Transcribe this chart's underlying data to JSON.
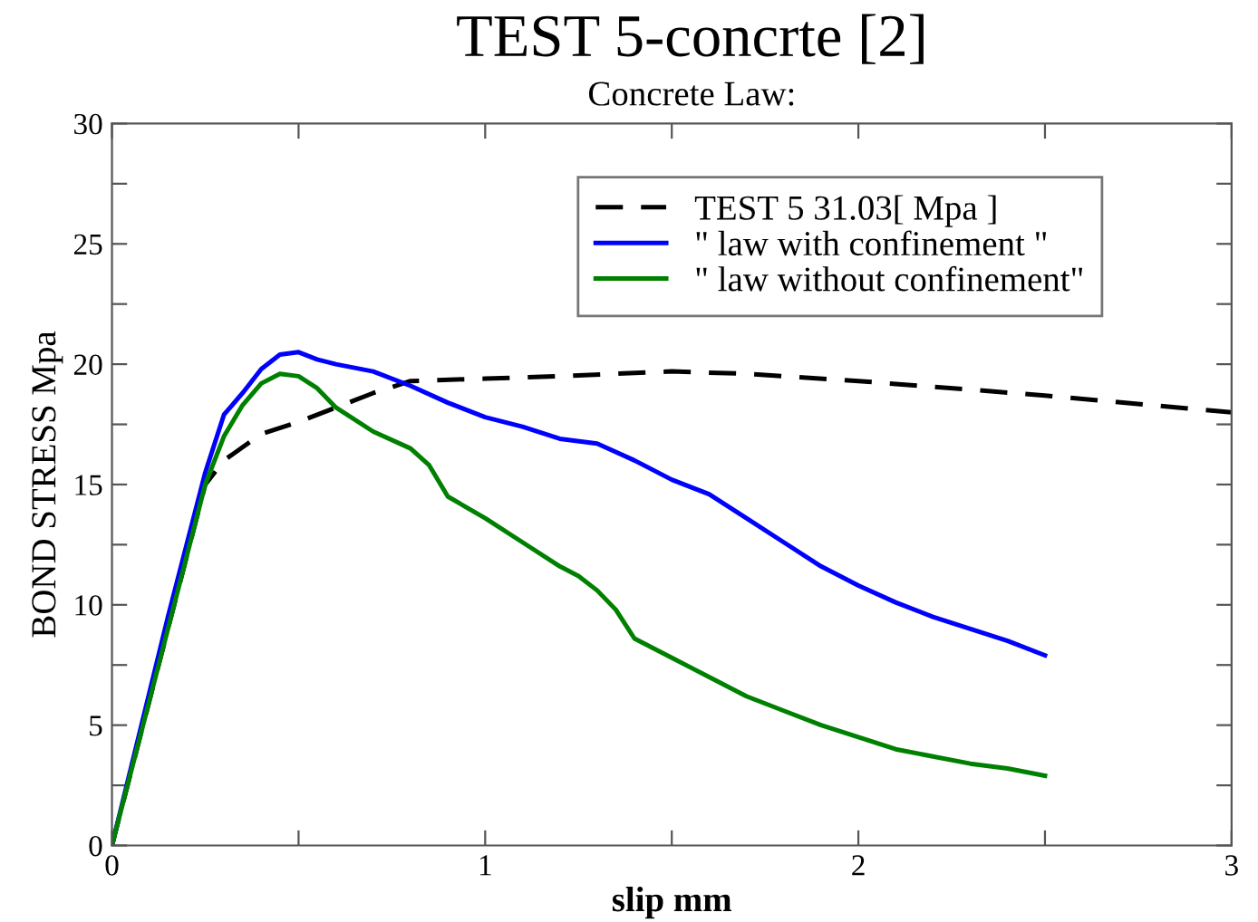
{
  "chart_data": {
    "type": "line",
    "title": "TEST 5-concrte [2]",
    "subtitle": "Concrete Law:",
    "xlabel": "slip mm",
    "ylabel": "BOND STRESS Mpa",
    "xlim": [
      0,
      3
    ],
    "ylim": [
      0,
      30
    ],
    "xticks": [
      0,
      {
        "value": 0.5,
        "label": null
      },
      1,
      {
        "value": 1.5,
        "label": null
      },
      2,
      {
        "value": 2.5,
        "label": null
      },
      3
    ],
    "yticks": [
      0,
      {
        "value": 2.5,
        "label": null
      },
      5,
      {
        "value": 7.5,
        "label": null
      },
      10,
      {
        "value": 12.5,
        "label": null
      },
      15,
      {
        "value": 17.5,
        "label": null
      },
      20,
      {
        "value": 22.5,
        "label": null
      },
      25,
      {
        "value": 27.5,
        "label": null
      },
      30
    ],
    "grid": false,
    "legend": "top right",
    "marker": "none",
    "series": [
      {
        "name": "TEST 5 31.03[ Mpa ]",
        "color": "#000000",
        "line_style": "dashed",
        "x": [
          0,
          0.1,
          0.2,
          0.25,
          0.3,
          0.4,
          0.5,
          0.6,
          0.7,
          0.8,
          1.0,
          1.2,
          1.5,
          1.7,
          2.0,
          2.5,
          3.0
        ],
        "values": [
          0,
          6,
          12,
          15,
          16,
          17.1,
          17.6,
          18.2,
          18.8,
          19.3,
          19.4,
          19.5,
          19.7,
          19.6,
          19.3,
          18.7,
          18.0
        ]
      },
      {
        "name": "\" law with confinement \"",
        "color": "#0000ff",
        "line_style": "solid",
        "x": [
          0,
          0.15,
          0.2,
          0.25,
          0.3,
          0.35,
          0.4,
          0.45,
          0.5,
          0.55,
          0.6,
          0.7,
          0.8,
          0.9,
          1.0,
          1.1,
          1.2,
          1.3,
          1.4,
          1.5,
          1.6,
          1.7,
          1.8,
          1.9,
          2.0,
          2.1,
          2.2,
          2.3,
          2.4,
          2.5
        ],
        "values": [
          0,
          9.5,
          12.5,
          15.5,
          17.9,
          18.8,
          19.8,
          20.4,
          20.5,
          20.2,
          20,
          19.7,
          19.1,
          18.4,
          17.8,
          17.4,
          16.9,
          16.7,
          16.0,
          15.2,
          14.6,
          13.6,
          12.6,
          11.6,
          10.8,
          10.1,
          9.5,
          9.0,
          8.5,
          7.9
        ]
      },
      {
        "name": "\" law without confinement\"",
        "color": "#008000",
        "line_style": "solid",
        "x": [
          0,
          0.1,
          0.2,
          0.25,
          0.3,
          0.35,
          0.4,
          0.45,
          0.5,
          0.55,
          0.6,
          0.7,
          0.8,
          0.85,
          0.9,
          1.0,
          1.1,
          1.2,
          1.25,
          1.3,
          1.35,
          1.4,
          1.5,
          1.6,
          1.7,
          1.8,
          1.9,
          2.0,
          2.1,
          2.2,
          2.3,
          2.4,
          2.5
        ],
        "values": [
          0,
          6,
          12,
          15,
          17.0,
          18.3,
          19.2,
          19.6,
          19.5,
          19.0,
          18.2,
          17.2,
          16.5,
          15.8,
          14.5,
          13.6,
          12.6,
          11.6,
          11.2,
          10.6,
          9.8,
          8.6,
          7.8,
          7.0,
          6.2,
          5.6,
          5.0,
          4.5,
          4.0,
          3.7,
          3.4,
          3.2,
          2.9
        ]
      }
    ]
  }
}
